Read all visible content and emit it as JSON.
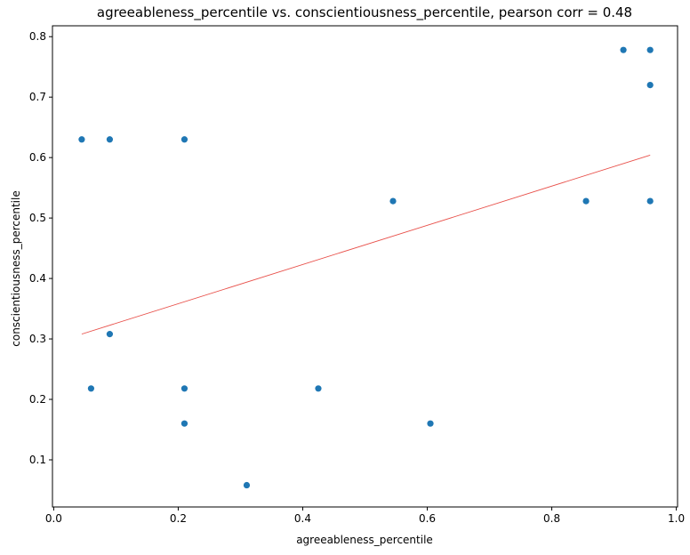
{
  "chart_data": {
    "type": "scatter",
    "title": "agreeableness_percentile vs. conscientiousness_percentile, pearson corr = 0.48",
    "xlabel": "agreeableness_percentile",
    "ylabel": "conscientiousness_percentile",
    "xlim": [
      -0.002,
      1.002
    ],
    "ylim": [
      0.022,
      0.818
    ],
    "xticks": [
      0.0,
      0.2,
      0.4,
      0.6,
      0.8,
      1.0
    ],
    "yticks": [
      0.1,
      0.2,
      0.3,
      0.4,
      0.5,
      0.6,
      0.7,
      0.8
    ],
    "xtick_labels": [
      "0.0",
      "0.2",
      "0.4",
      "0.6",
      "0.8",
      "1.0"
    ],
    "ytick_labels": [
      "0.1",
      "0.2",
      "0.3",
      "0.4",
      "0.5",
      "0.6",
      "0.7",
      "0.8"
    ],
    "grid": false,
    "points": {
      "color": "#1f77b4",
      "x": [
        0.045,
        0.09,
        0.21,
        0.545,
        0.855,
        0.915,
        0.958,
        0.958,
        0.958,
        0.09,
        0.06,
        0.21,
        0.21,
        0.31,
        0.425,
        0.605
      ],
      "y": [
        0.63,
        0.63,
        0.63,
        0.528,
        0.528,
        0.778,
        0.778,
        0.72,
        0.528,
        0.308,
        0.218,
        0.218,
        0.16,
        0.058,
        0.218,
        0.16
      ]
    },
    "trendline": {
      "color": "#e8504a",
      "x": [
        0.045,
        0.958
      ],
      "y": [
        0.308,
        0.604
      ]
    }
  }
}
